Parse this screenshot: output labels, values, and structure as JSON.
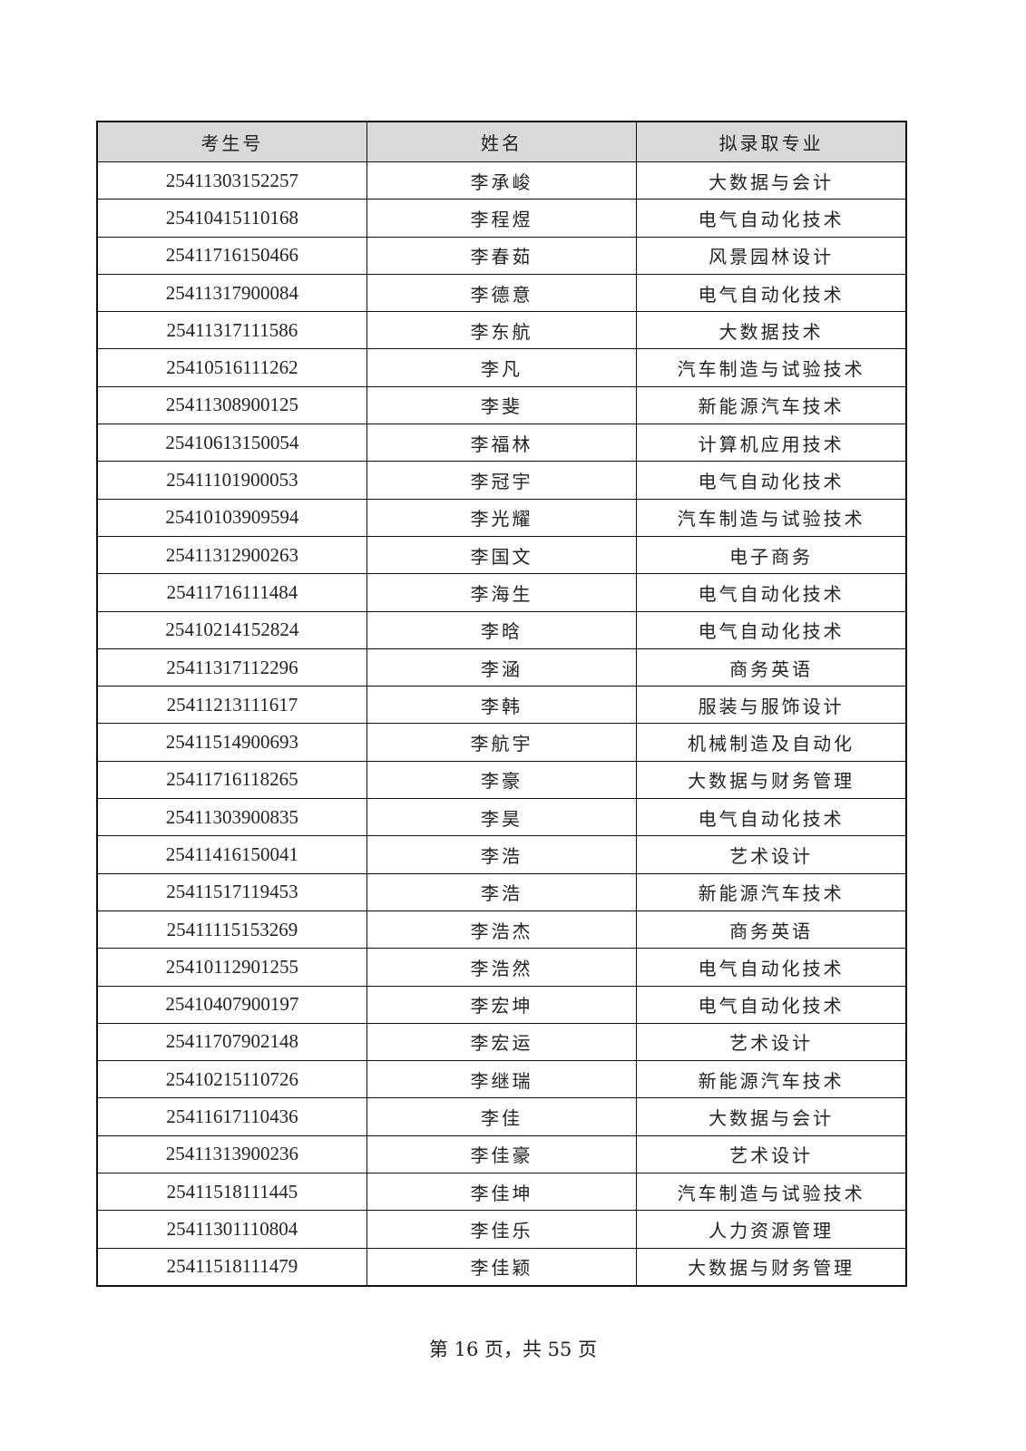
{
  "table": {
    "headers": [
      "考生号",
      "姓名",
      "拟录取专业"
    ],
    "rows": [
      [
        "25411303152257",
        "李承峻",
        "大数据与会计"
      ],
      [
        "25410415110168",
        "李程煜",
        "电气自动化技术"
      ],
      [
        "25411716150466",
        "李春茹",
        "风景园林设计"
      ],
      [
        "25411317900084",
        "李德意",
        "电气自动化技术"
      ],
      [
        "25411317111586",
        "李东航",
        "大数据技术"
      ],
      [
        "25410516111262",
        "李凡",
        "汽车制造与试验技术"
      ],
      [
        "25411308900125",
        "李斐",
        "新能源汽车技术"
      ],
      [
        "25410613150054",
        "李福林",
        "计算机应用技术"
      ],
      [
        "25411101900053",
        "李冠宇",
        "电气自动化技术"
      ],
      [
        "25410103909594",
        "李光耀",
        "汽车制造与试验技术"
      ],
      [
        "25411312900263",
        "李国文",
        "电子商务"
      ],
      [
        "25411716111484",
        "李海生",
        "电气自动化技术"
      ],
      [
        "25410214152824",
        "李晗",
        "电气自动化技术"
      ],
      [
        "25411317112296",
        "李涵",
        "商务英语"
      ],
      [
        "25411213111617",
        "李韩",
        "服装与服饰设计"
      ],
      [
        "25411514900693",
        "李航宇",
        "机械制造及自动化"
      ],
      [
        "25411716118265",
        "李豪",
        "大数据与财务管理"
      ],
      [
        "25411303900835",
        "李昊",
        "电气自动化技术"
      ],
      [
        "25411416150041",
        "李浩",
        "艺术设计"
      ],
      [
        "25411517119453",
        "李浩",
        "新能源汽车技术"
      ],
      [
        "25411115153269",
        "李浩杰",
        "商务英语"
      ],
      [
        "25410112901255",
        "李浩然",
        "电气自动化技术"
      ],
      [
        "25410407900197",
        "李宏坤",
        "电气自动化技术"
      ],
      [
        "25411707902148",
        "李宏运",
        "艺术设计"
      ],
      [
        "25410215110726",
        "李继瑞",
        "新能源汽车技术"
      ],
      [
        "25411617110436",
        "李佳",
        "大数据与会计"
      ],
      [
        "25411313900236",
        "李佳豪",
        "艺术设计"
      ],
      [
        "25411518111445",
        "李佳坤",
        "汽车制造与试验技术"
      ],
      [
        "25411301110804",
        "李佳乐",
        "人力资源管理"
      ],
      [
        "25411518111479",
        "李佳颖",
        "大数据与财务管理"
      ]
    ]
  },
  "footer": {
    "page_text": "第 16 页，共 55 页"
  }
}
